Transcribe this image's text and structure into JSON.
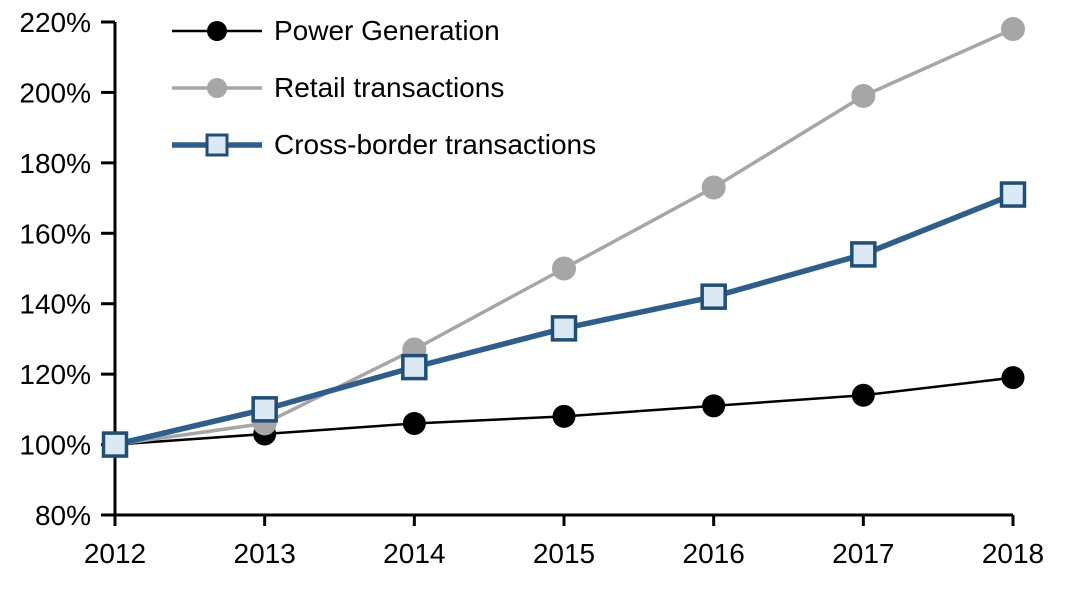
{
  "chart_data": {
    "type": "line",
    "title": "",
    "xlabel": "",
    "ylabel": "",
    "grid": false,
    "legend_position": "top-left",
    "background": "#ffffff",
    "axis_color": "#000000",
    "ylim": [
      80,
      220
    ],
    "y_tick_step": 20,
    "x": [
      2012,
      2013,
      2014,
      2015,
      2016,
      2017,
      2018
    ],
    "x_labels": [
      "2012",
      "2013",
      "2014",
      "2015",
      "2016",
      "2017",
      "2018"
    ],
    "y_ticks": [
      {
        "value": 80,
        "label": "80%"
      },
      {
        "value": 100,
        "label": "100%"
      },
      {
        "value": 120,
        "label": "120%"
      },
      {
        "value": 140,
        "label": "140%"
      },
      {
        "value": 160,
        "label": "160%"
      },
      {
        "value": 180,
        "label": "180%"
      },
      {
        "value": 200,
        "label": "200%"
      },
      {
        "value": 220,
        "label": "220%"
      }
    ],
    "series": [
      {
        "name": "Power Generation",
        "values": [
          100,
          103,
          106,
          108,
          111,
          114,
          119
        ],
        "color": "#000000",
        "line_width": 2.5,
        "marker": "circle",
        "marker_fill": "#000000",
        "marker_size": 23
      },
      {
        "name": "Retail transactions",
        "values": [
          100,
          106,
          127,
          150,
          173,
          199,
          218
        ],
        "color": "#a6a6a6",
        "line_width": 3.5,
        "marker": "circle",
        "marker_fill": "#a6a6a6",
        "marker_size": 24
      },
      {
        "name": "Cross-border transactions",
        "values": [
          100,
          110,
          122,
          133,
          142,
          154,
          171
        ],
        "color": "#2c5f8d",
        "line_width": 5.5,
        "marker": "square",
        "marker_fill": "#dce9f5",
        "marker_border": "#1f4e79",
        "marker_size": 23
      }
    ]
  }
}
